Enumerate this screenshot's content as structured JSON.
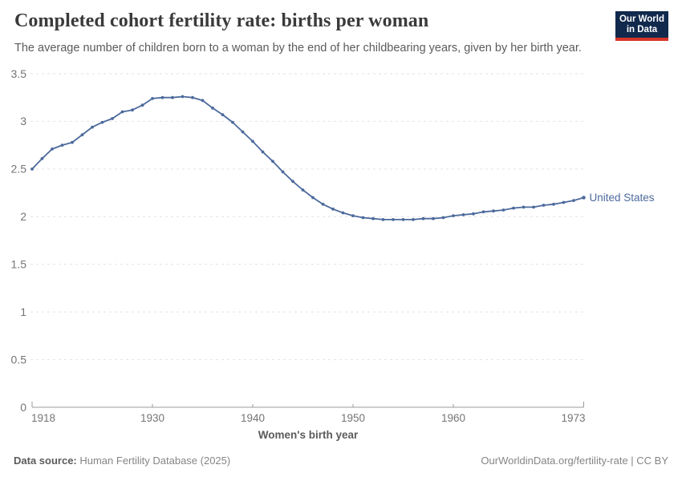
{
  "header": {
    "title": "Completed cohort fertility rate: births per woman",
    "subtitle": "The average number of children born to a woman by the end of her childbearing years, given by her birth year.",
    "logo": {
      "line1": "Our World",
      "line2": "in Data"
    }
  },
  "chart_data": {
    "type": "line",
    "title": "Completed cohort fertility rate: births per woman",
    "xlabel": "Women's birth year",
    "ylabel": "",
    "x_range": [
      1918,
      1973
    ],
    "ylim": [
      0,
      3.5
    ],
    "grid": "horizontal-dashed",
    "legend_position": "end-of-line-label",
    "x_ticks": [
      1918,
      1930,
      1940,
      1950,
      1960,
      1973
    ],
    "y_ticks": [
      0,
      0.5,
      1,
      1.5,
      2,
      2.5,
      3,
      3.5
    ],
    "series": [
      {
        "name": "United States",
        "color": "#4c6a9c",
        "x": [
          1918,
          1919,
          1920,
          1921,
          1922,
          1923,
          1924,
          1925,
          1926,
          1927,
          1928,
          1929,
          1930,
          1931,
          1932,
          1933,
          1934,
          1935,
          1936,
          1937,
          1938,
          1939,
          1940,
          1941,
          1942,
          1943,
          1944,
          1945,
          1946,
          1947,
          1948,
          1949,
          1950,
          1951,
          1952,
          1953,
          1954,
          1955,
          1956,
          1957,
          1958,
          1959,
          1960,
          1961,
          1962,
          1963,
          1964,
          1965,
          1966,
          1967,
          1968,
          1969,
          1970,
          1971,
          1972,
          1973
        ],
        "values": [
          2.5,
          2.61,
          2.71,
          2.75,
          2.78,
          2.86,
          2.94,
          2.99,
          3.03,
          3.1,
          3.12,
          3.17,
          3.24,
          3.25,
          3.25,
          3.26,
          3.25,
          3.22,
          3.14,
          3.07,
          2.99,
          2.89,
          2.79,
          2.68,
          2.58,
          2.47,
          2.37,
          2.28,
          2.2,
          2.13,
          2.08,
          2.04,
          2.01,
          1.99,
          1.98,
          1.97,
          1.97,
          1.97,
          1.97,
          1.98,
          1.98,
          1.99,
          2.01,
          2.02,
          2.03,
          2.05,
          2.06,
          2.07,
          2.09,
          2.1,
          2.1,
          2.12,
          2.13,
          2.15,
          2.17,
          2.2
        ]
      }
    ]
  },
  "footer": {
    "datasource_label": "Data source:",
    "datasource_value": " Human Fertility Database (2025)",
    "credit": "OurWorldinData.org/fertility-rate | CC BY"
  },
  "colors": {
    "line": "#4c6a9c",
    "series_label": "#4c6a9c",
    "gridline": "#e2e2e2",
    "axis_line": "#9b9b9b",
    "tick_label": "#757575",
    "title": "#3a3a3a",
    "subtitle": "#5b5b5b",
    "logo_bg": "#10294c",
    "logo_red": "#d5342b"
  }
}
